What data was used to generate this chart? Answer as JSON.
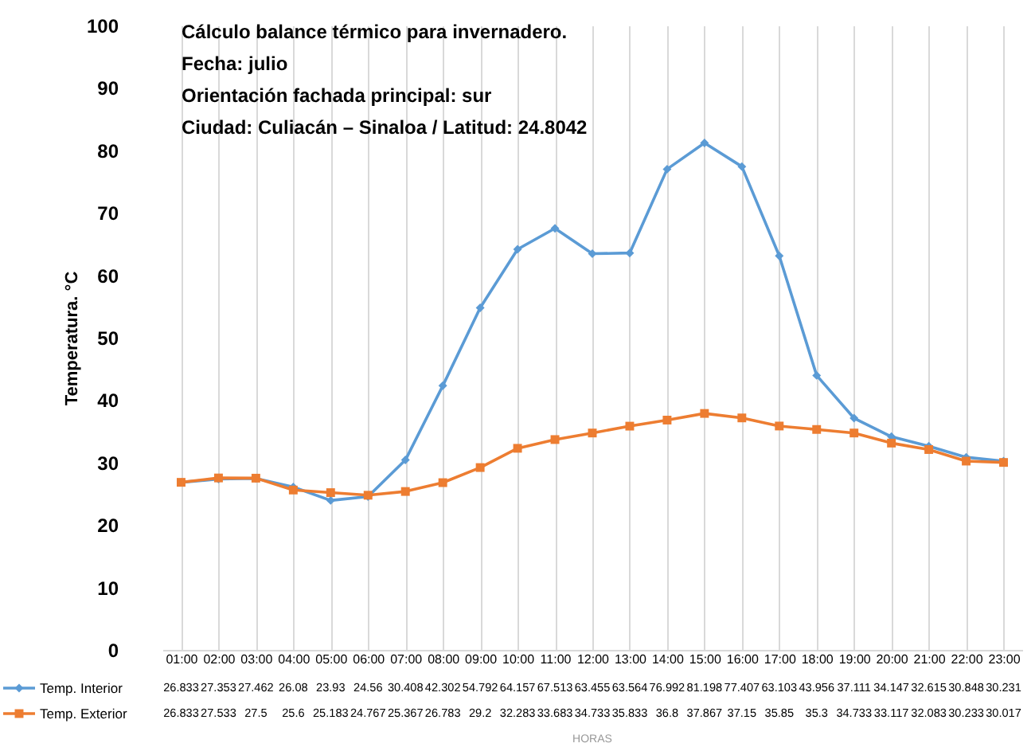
{
  "chart_data": {
    "type": "line",
    "title": "Cálculo balance térmico para invernadero.",
    "subtitle": "Fecha: julio\nOrientación fachada principal: sur\nCiudad: Culiacán – Sinaloa / Latitud: 24.8042",
    "annotations": [
      "HORAS"
    ],
    "ylabel": "Temperatura. °C",
    "categories": [
      "01:00",
      "02:00",
      "03:00",
      "04:00",
      "05:00",
      "06:00",
      "07:00",
      "08:00",
      "09:00",
      "10:00",
      "11:00",
      "12:00",
      "13:00",
      "14:00",
      "15:00",
      "16:00",
      "17:00",
      "18:00",
      "19:00",
      "20:00",
      "21:00",
      "22:00",
      "23:00"
    ],
    "series": [
      {
        "name": "Temp. Interior",
        "color": "#5b9bd5",
        "marker": "diamond",
        "values": [
          26.833,
          27.353,
          27.462,
          26.08,
          23.93,
          24.56,
          30.408,
          42.302,
          54.792,
          64.157,
          67.513,
          63.455,
          63.564,
          76.992,
          81.198,
          77.407,
          63.103,
          43.956,
          37.111,
          34.147,
          32.615,
          30.848,
          30.231
        ]
      },
      {
        "name": "Temp. Exterior",
        "color": "#ed7d31",
        "marker": "square",
        "values": [
          26.833,
          27.533,
          27.5,
          25.6,
          25.183,
          24.767,
          25.367,
          26.783,
          29.2,
          32.283,
          33.683,
          34.733,
          35.833,
          36.8,
          37.867,
          37.15,
          35.85,
          35.3,
          34.733,
          33.117,
          32.083,
          30.233,
          30.017
        ]
      }
    ],
    "ylim": [
      0,
      100
    ],
    "yticks": [
      0,
      10,
      20,
      30,
      40,
      50,
      60,
      70,
      80,
      90,
      100
    ],
    "grid": "x",
    "legend": "bottom",
    "data_labels": true,
    "line_style": "solid"
  }
}
